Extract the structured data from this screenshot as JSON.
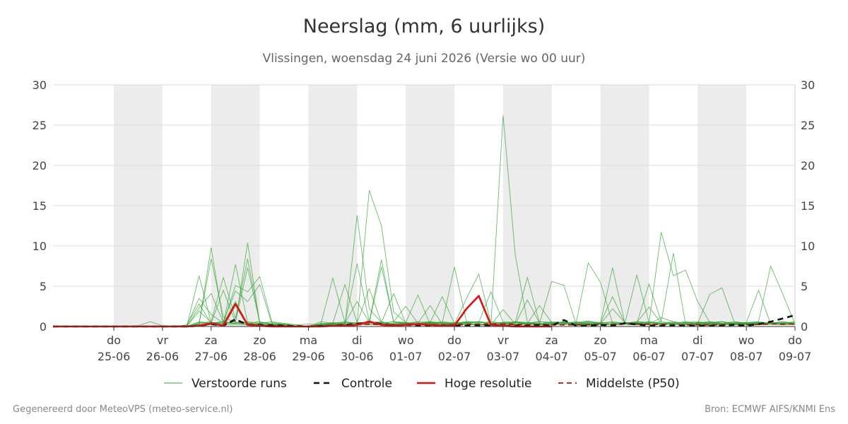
{
  "header": {
    "title": "Neerslag (mm, 6 uurlijks)",
    "subtitle": "Vlissingen, woensdag 24 juni 2026 (Versie wo 00 uur)"
  },
  "footer": {
    "left": "Gegenereerd door MeteoVPS (meteo-service.nl)",
    "right": "Bron: ECMWF AIFS/KNMI Ens"
  },
  "chart_data": {
    "type": "line",
    "title": "Neerslag (mm, 6 uurlijks)",
    "subtitle": "Vlissingen, woensdag 24 juni 2026 (Versie wo 00 uur)",
    "x_unit": "days since 24-06 00:00",
    "xlim": [
      -0.25,
      15
    ],
    "ylim": [
      0,
      30
    ],
    "yticks": [
      0,
      5,
      10,
      15,
      20,
      25,
      30
    ],
    "dual_y_axis": true,
    "grid": true,
    "shaded_days": [
      1,
      3,
      5,
      7,
      9,
      11,
      13
    ],
    "x_ticks": [
      {
        "day": "do",
        "date": "25-06"
      },
      {
        "day": "vr",
        "date": "26-06"
      },
      {
        "day": "za",
        "date": "27-06"
      },
      {
        "day": "zo",
        "date": "28-06"
      },
      {
        "day": "ma",
        "date": "29-06"
      },
      {
        "day": "di",
        "date": "30-06"
      },
      {
        "day": "wo",
        "date": "01-07"
      },
      {
        "day": "do",
        "date": "02-07"
      },
      {
        "day": "vr",
        "date": "03-07"
      },
      {
        "day": "za",
        "date": "04-07"
      },
      {
        "day": "zo",
        "date": "05-07"
      },
      {
        "day": "ma",
        "date": "06-07"
      },
      {
        "day": "di",
        "date": "07-07"
      },
      {
        "day": "wo",
        "date": "08-07"
      },
      {
        "day": "do",
        "date": "09-07"
      }
    ],
    "legend": [
      "Verstoorde runs",
      "Controle",
      "Hoge resolutie",
      "Middelste (P50)"
    ],
    "legend_position": "bottom",
    "colors": {
      "ensemble": "#2ca02c",
      "controle": "#111111",
      "hoge_resolutie": "#dd1111",
      "p50": "#aa1111",
      "shade": "#ececec",
      "grid": "#dddddd"
    },
    "series": [
      {
        "name": "Hoge resolutie",
        "style": "solid-red",
        "x": [
          -0.25,
          0,
          0.25,
          0.5,
          0.75,
          1,
          1.25,
          1.5,
          1.75,
          2,
          2.25,
          2.5,
          2.75,
          3,
          3.25,
          3.5,
          3.75,
          4,
          4.25,
          4.5,
          4.75,
          5,
          5.25,
          5.5,
          5.75,
          6,
          6.25,
          6.5,
          6.75,
          7,
          7.25,
          7.5,
          7.75,
          8,
          8.25,
          8.5,
          8.75,
          9,
          9.25,
          9.5,
          9.75,
          10
        ],
        "y": [
          0,
          0,
          0,
          0,
          0,
          0,
          0,
          0,
          0,
          0,
          0,
          0,
          0.1,
          0.4,
          0.1,
          2.8,
          0.2,
          0.1,
          0,
          0,
          0,
          0,
          0,
          0.1,
          0.1,
          0.2,
          0.6,
          0.2,
          0.1,
          0.2,
          0.3,
          0.2,
          0.1,
          0.1,
          2.2,
          3.8,
          0.2,
          0.1,
          0,
          0,
          0,
          0
        ]
      },
      {
        "name": "Controle",
        "style": "dashed-black",
        "x": [
          -0.25,
          0,
          0.5,
          1,
          1.5,
          2,
          2.5,
          2.75,
          3,
          3.25,
          3.5,
          3.75,
          4,
          4.5,
          5,
          5.5,
          5.75,
          6,
          6.25,
          6.5,
          6.75,
          7,
          7.5,
          8,
          8.5,
          9,
          9.25,
          9.5,
          9.75,
          10,
          10.25,
          10.5,
          10.75,
          11,
          11.25,
          11.5,
          12,
          12.5,
          13,
          13.5,
          13.75,
          14,
          14.25,
          14.5,
          14.75,
          15
        ],
        "y": [
          0,
          0,
          0,
          0,
          0,
          0,
          0,
          0.1,
          0.3,
          0.1,
          0.9,
          0.2,
          0.2,
          0.1,
          0,
          0.1,
          0.2,
          0.3,
          0.6,
          0.3,
          0.1,
          0.2,
          0.1,
          0.1,
          0.1,
          0.1,
          0.1,
          0.1,
          0.2,
          0.1,
          0.8,
          0.1,
          0.1,
          0.2,
          0.1,
          0.4,
          0.1,
          0.1,
          0.1,
          0.1,
          0.2,
          0.1,
          0.3,
          0.6,
          1.0,
          1.4
        ]
      },
      {
        "name": "Middelste (P50)",
        "style": "dashed-darkred",
        "x": [
          -0.25,
          0,
          1,
          2,
          2.75,
          3,
          3.25,
          3.5,
          3.75,
          4,
          4.5,
          5,
          5.5,
          6,
          6.25,
          6.5,
          7,
          7.5,
          8,
          8.5,
          9,
          9.5,
          10,
          10.5,
          11,
          11.5,
          12,
          12.5,
          13,
          13.5,
          14,
          14.5,
          15
        ],
        "y": [
          0,
          0,
          0,
          0,
          0.1,
          0.3,
          0.2,
          0.8,
          0.2,
          0.1,
          0.1,
          0,
          0.1,
          0.2,
          0.3,
          0.2,
          0.2,
          0.2,
          0.2,
          0.3,
          0.3,
          0.2,
          0.2,
          0.2,
          0.2,
          0.3,
          0.3,
          0.2,
          0.2,
          0.2,
          0.2,
          0.3,
          0.3
        ]
      }
    ],
    "ensemble_x": [
      -0.25,
      0,
      0.25,
      0.5,
      0.75,
      1,
      1.25,
      1.5,
      1.75,
      2,
      2.25,
      2.5,
      2.75,
      3,
      3.25,
      3.5,
      3.75,
      4,
      4.25,
      4.5,
      4.75,
      5,
      5.25,
      5.5,
      5.75,
      6,
      6.25,
      6.5,
      6.75,
      7,
      7.25,
      7.5,
      7.75,
      8,
      8.25,
      8.5,
      8.75,
      9,
      9.25,
      9.5,
      9.75,
      10,
      10.25,
      10.5,
      10.75,
      11,
      11.25,
      11.5,
      11.75,
      12,
      12.25,
      12.5,
      12.75,
      13,
      13.25,
      13.5,
      13.75,
      14,
      14.25,
      14.5,
      14.75,
      15
    ],
    "ensemble_members": [
      [
        0,
        0,
        0,
        0,
        0,
        0,
        0,
        0,
        0,
        0.1,
        0,
        0,
        6.3,
        0.5,
        0.3,
        7.7,
        0.5,
        0.2,
        0.1,
        0,
        0,
        0,
        0.1,
        0.3,
        0.1,
        13.8,
        2.2,
        0.5,
        0.3,
        0.4,
        0.2,
        0.5,
        0.1,
        0.3,
        0.5,
        0.2,
        0.2,
        26.2,
        8.9,
        0.5,
        0.4,
        0.2,
        0.3,
        0.5,
        0.7,
        0.3,
        2.2,
        0.5,
        0.4,
        0.3,
        1.1,
        0.6,
        0.3,
        0.2,
        0.3,
        0.6,
        0.3,
        0.2,
        0.5,
        0.3,
        0.2,
        0.3
      ],
      [
        0,
        0,
        0,
        0,
        0,
        0,
        0,
        0,
        0,
        0,
        0,
        0,
        0.3,
        8.4,
        1.2,
        0.5,
        0.3,
        0.2,
        0.1,
        0,
        0,
        0,
        0.2,
        0.1,
        0.3,
        0.4,
        16.9,
        12.5,
        1.8,
        0.5,
        0.3,
        0.6,
        0.4,
        0.5,
        0.3,
        0.2,
        0.1,
        0.3,
        0.6,
        0.5,
        0.3,
        0.4,
        0.5,
        0.2,
        0.4,
        0.3,
        0.2,
        0.5,
        0.3,
        0.4,
        11.7,
        6.3,
        7.0,
        3.1,
        0.5,
        0.4,
        0.3,
        0.2,
        0.4,
        0.5,
        0.3,
        0.4
      ],
      [
        0,
        0,
        0,
        0,
        0,
        0,
        0,
        0,
        0,
        0,
        0,
        0,
        0.2,
        9.8,
        0.5,
        0.4,
        10.4,
        0.3,
        0.1,
        0,
        0,
        0,
        0.1,
        0.2,
        0.3,
        0.5,
        0.4,
        7.4,
        0.6,
        0.5,
        0.3,
        0.4,
        0.2,
        0.3,
        0.4,
        0.6,
        0.3,
        0.4,
        0.5,
        0.3,
        0.2,
        0.3,
        0.5,
        0.4,
        0.3,
        0.2,
        0.5,
        0.4,
        0.3,
        0.6,
        0.4,
        0.3,
        0.5,
        0.4,
        0.3,
        0.2,
        0.4,
        0.5,
        0.6,
        7.5,
        4.0,
        0.3
      ],
      [
        0,
        0,
        0,
        0,
        0,
        0,
        0,
        0,
        0,
        0,
        0,
        0,
        0.4,
        0.6,
        6.1,
        1.0,
        8.4,
        0.5,
        0.3,
        0,
        0,
        0,
        0.2,
        6.0,
        0.5,
        0.4,
        0.6,
        0.3,
        0.4,
        0.5,
        3.9,
        0.3,
        0.4,
        7.4,
        0.6,
        0.5,
        0.4,
        0.3,
        0.5,
        6.1,
        0.4,
        5.6,
        5.1,
        0.3,
        0.2,
        0.4,
        7.3,
        0.5,
        0.4,
        5.3,
        0.6,
        9.1,
        0.3,
        0.4,
        4.0,
        4.8,
        0.6,
        0.4,
        0.3,
        0.5,
        0.4,
        0.3
      ],
      [
        0,
        0,
        0,
        0,
        0,
        0,
        0,
        0,
        0,
        0,
        0,
        0,
        0.3,
        0.5,
        0.4,
        5.1,
        4.3,
        6.2,
        0.5,
        0.3,
        0,
        0,
        0.3,
        0.5,
        0.4,
        7.8,
        0.6,
        8.3,
        0.5,
        0.4,
        0.3,
        0.5,
        3.7,
        0.4,
        0.6,
        0.5,
        4.3,
        0.6,
        0.5,
        0.4,
        0.3,
        0.6,
        0.5,
        0.4,
        7.9,
        5.5,
        0.4,
        0.3,
        0.6,
        0.5,
        0.4,
        0.3,
        0.5,
        0.4,
        0.6,
        0.3,
        0.4,
        0.5,
        4.5,
        0.3,
        0.4,
        0.5
      ],
      [
        0,
        0,
        0,
        0,
        0,
        0,
        0,
        0,
        0,
        0,
        0,
        0,
        0.5,
        0.4,
        0.6,
        4.4,
        3.1,
        5.2,
        0.3,
        0.2,
        0,
        0,
        0.4,
        0.3,
        0.5,
        0.4,
        0.6,
        0.5,
        4.1,
        0.4,
        0.3,
        0.5,
        0.4,
        0.3,
        0.5,
        0.6,
        0.4,
        0.3,
        0.5,
        0.4,
        0.3,
        0.5,
        0.4,
        0.6,
        0.3,
        0.5,
        0.4,
        0.3,
        6.4,
        0.5,
        0.4,
        0.6,
        0.3,
        0.5,
        0.4,
        0.6,
        0.3,
        0.5,
        0.4,
        0.3,
        0.5,
        0.4
      ],
      [
        0,
        0,
        0,
        0,
        0,
        0,
        0,
        0,
        0,
        0,
        0.1,
        0.1,
        3.5,
        1.5,
        0.4,
        0.6,
        7.3,
        0.5,
        0.4,
        0.3,
        0,
        0,
        0.3,
        0.4,
        5.2,
        0.5,
        0.4,
        0.6,
        0.3,
        0.4,
        0.5,
        0.6,
        0.4,
        0.3,
        3.5,
        6.5,
        0.4,
        0.5,
        0.3,
        0.4,
        0.6,
        0.5,
        0.4,
        0.3,
        0.5,
        0.4,
        3.7,
        0.5,
        0.4,
        0.6,
        0.3,
        0.5,
        0.4,
        0.3,
        0.5,
        0.6,
        0.4,
        0.3,
        0.5,
        0.4,
        0.6,
        0.3
      ],
      [
        0,
        0,
        0,
        0,
        0,
        0,
        0,
        0.1,
        0.6,
        0.1,
        0,
        0.2,
        2.8,
        0.4,
        4.5,
        0.5,
        0.4,
        0.6,
        0.3,
        0.2,
        0.1,
        0,
        0.2,
        0.3,
        0.4,
        3.1,
        0.5,
        0.4,
        0.6,
        2.5,
        0.4,
        0.5,
        0.3,
        0.4,
        0.5,
        0.6,
        0.4,
        0.5,
        0.3,
        0.4,
        2.6,
        0.5,
        0.4,
        0.3,
        0.6,
        0.5,
        0.4,
        0.3,
        0.5,
        2.4,
        0.4,
        0.3,
        0.5,
        0.6,
        0.4,
        0.3,
        0.5,
        0.4,
        0.3,
        0.5,
        0.4,
        0.6
      ],
      [
        0,
        0,
        0,
        0,
        0,
        0,
        0,
        0,
        0,
        0,
        0,
        0,
        1.9,
        0.5,
        0.4,
        3.1,
        0.3,
        0.4,
        0.2,
        0.1,
        0,
        0,
        0.1,
        0.2,
        0.3,
        0.4,
        4.7,
        0.5,
        0.3,
        0.4,
        0.2,
        0.3,
        0.5,
        0.4,
        0.3,
        0.2,
        0.4,
        0.5,
        0.3,
        3.3,
        0.4,
        0.2,
        0.3,
        0.5,
        0.4,
        0.3,
        0.2,
        0.4,
        0.5,
        0.3,
        0.4,
        0.2,
        0.3,
        0.5,
        0.4,
        0.3,
        0.2,
        0.4,
        0.5,
        0.3,
        0.4,
        0.2
      ],
      [
        0,
        0,
        0,
        0,
        0,
        0,
        0,
        0,
        0,
        0,
        0,
        0,
        2.3,
        4.1,
        0.5,
        0.3,
        0.4,
        0.2,
        0.1,
        0,
        0,
        0,
        0.2,
        0.4,
        0.3,
        0.2,
        0.3,
        0.4,
        0.2,
        0.3,
        0.4,
        2.6,
        0.3,
        0.2,
        0.4,
        0.3,
        0.2,
        2.1,
        0.3,
        0.4,
        0.2,
        0.3,
        0.4,
        0.2,
        0.3,
        0.4,
        0.2,
        0.3,
        0.4,
        0.2,
        0.3,
        0.4,
        0.2,
        0.3,
        0.4,
        0.2,
        0.3,
        0.4,
        0.2,
        0.3,
        0.4,
        0.2
      ],
      [
        0,
        0,
        0,
        0,
        0,
        0,
        0,
        0,
        0,
        0,
        0,
        0,
        0.2,
        0.3,
        0.2,
        0.3,
        0.2,
        0.3,
        0.2,
        0.3,
        0.2,
        0.3,
        0.2,
        0.3,
        0.2,
        0.3,
        0.2,
        0.3,
        0.2,
        0.3,
        0.2,
        0.3,
        0.2,
        0.3,
        0.2,
        0.3,
        0.2,
        0.3,
        0.2,
        0.3,
        0.2,
        0.3,
        0.2,
        0.3,
        0.2,
        0.3,
        0.2,
        0.3,
        0.2,
        0.3,
        0.2,
        0.3,
        0.2,
        0.3,
        0.2,
        0.3,
        0.2,
        0.3,
        0.2,
        0.3,
        0.2,
        0.3
      ],
      [
        0,
        0,
        0,
        0,
        0,
        0,
        0,
        0,
        0,
        0,
        0,
        0,
        0.6,
        0.4,
        0.6,
        0.4,
        0.6,
        0.4,
        0.6,
        0.4,
        0.2,
        0,
        0.6,
        0.4,
        0.6,
        0.4,
        0.6,
        0.4,
        0.6,
        0.4,
        0.6,
        0.4,
        0.6,
        0.4,
        0.6,
        0.4,
        0.6,
        0.4,
        0.6,
        0.4,
        0.6,
        0.4,
        0.6,
        0.4,
        0.6,
        0.4,
        0.6,
        0.4,
        0.6,
        0.4,
        0.6,
        0.4,
        0.6,
        0.4,
        0.6,
        0.4,
        0.6,
        0.4,
        0.6,
        0.4,
        0.6,
        0.4
      ]
    ]
  }
}
